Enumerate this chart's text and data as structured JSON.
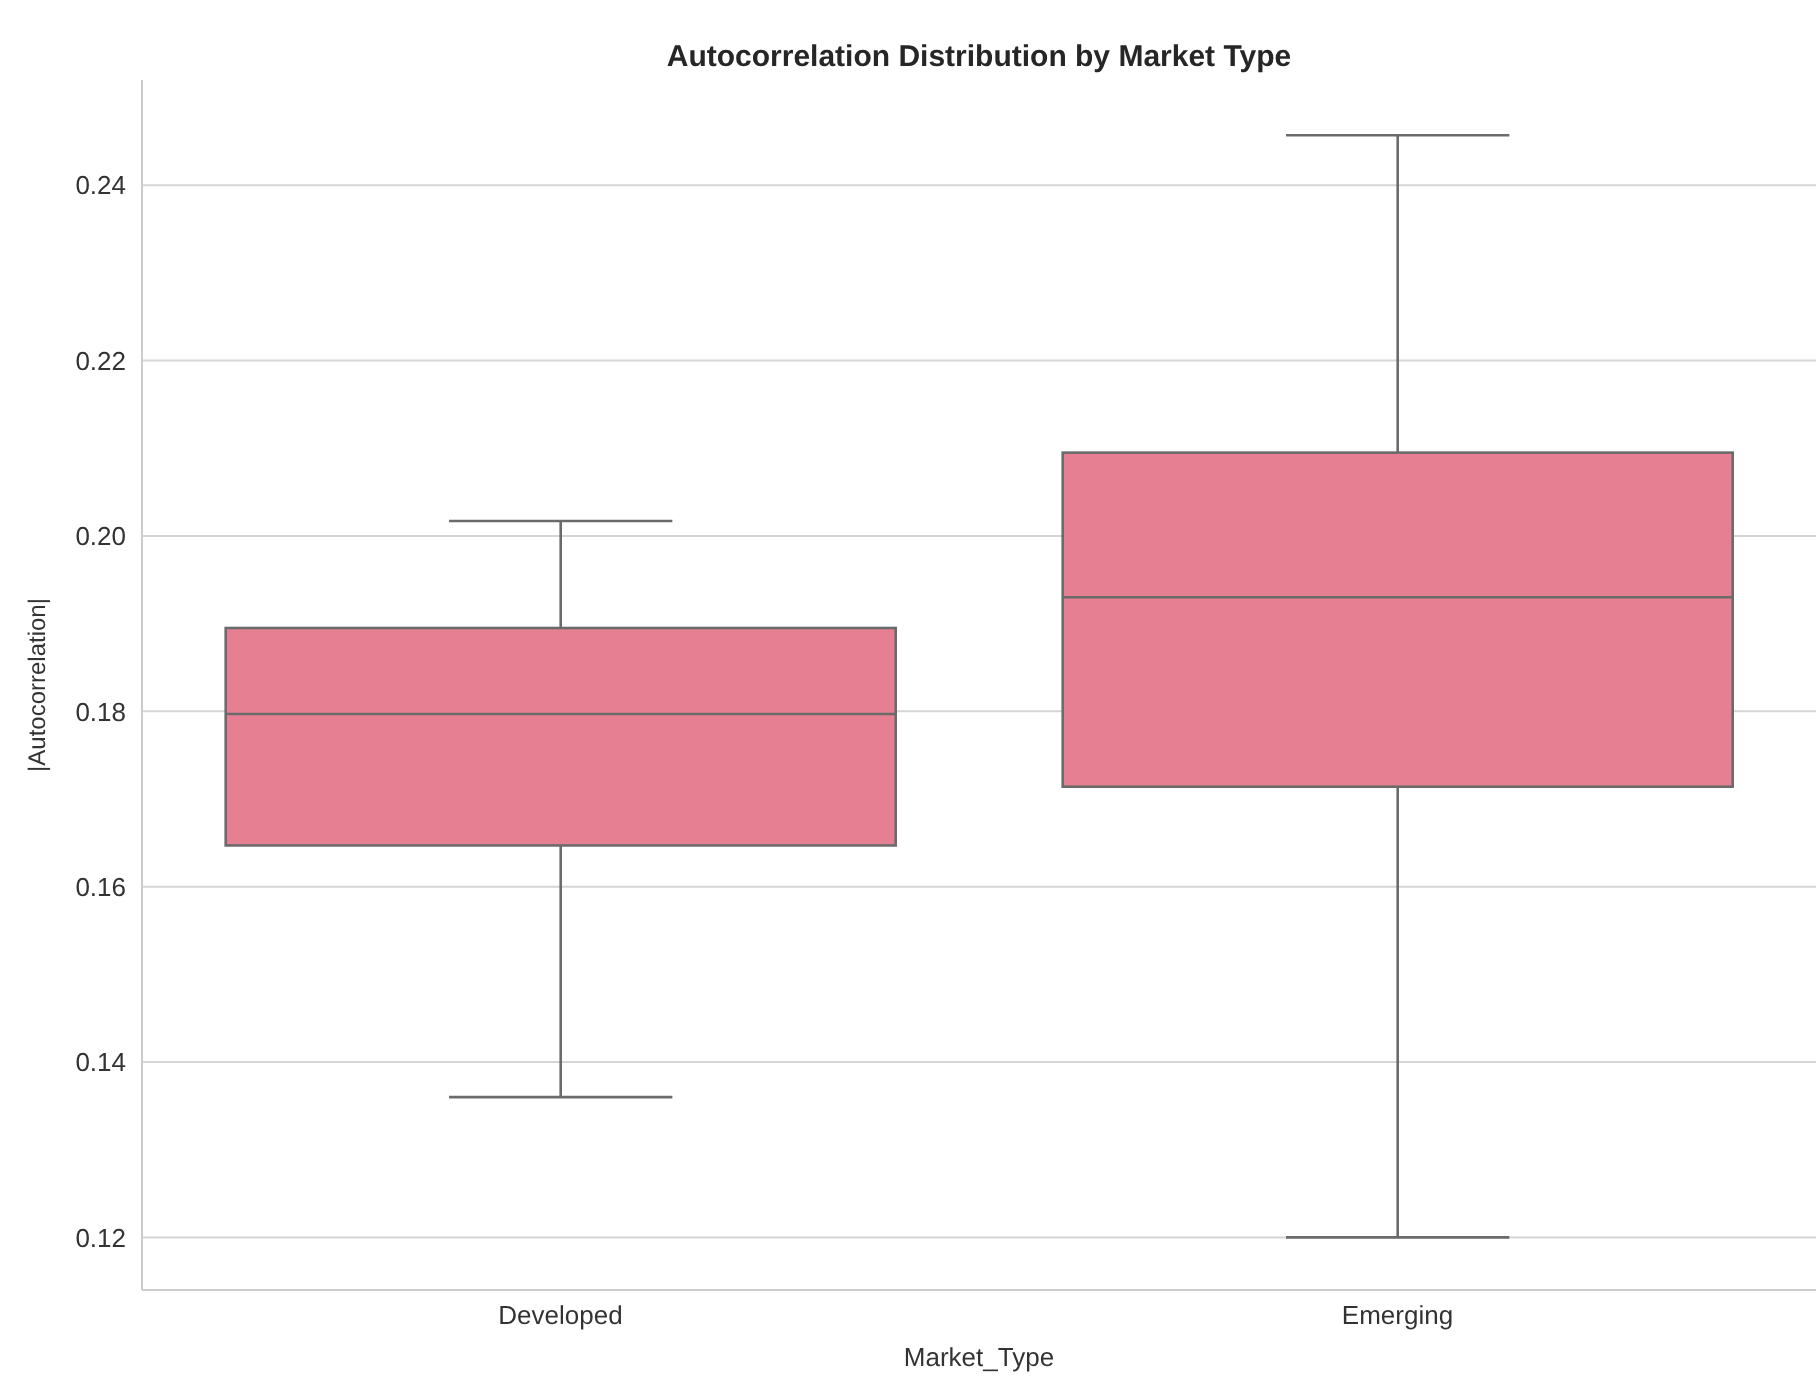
{
  "chart_data": {
    "type": "box",
    "title": "Autocorrelation Distribution by Market Type",
    "xlabel": "Market_Type",
    "ylabel": "|Autocorrelation|",
    "categories": [
      "Developed",
      "Emerging"
    ],
    "boxes": [
      {
        "low": 0.136,
        "q1": 0.1647,
        "median": 0.1797,
        "q3": 0.1895,
        "high": 0.2017
      },
      {
        "low": 0.12,
        "q1": 0.1714,
        "median": 0.193,
        "q3": 0.2095,
        "high": 0.2457
      }
    ],
    "colors": [
      "#e77f92",
      "#e77f92"
    ],
    "ylim": [
      0.114,
      0.252
    ],
    "yticks": [
      0.12,
      0.14,
      0.16,
      0.18,
      {
        "value": 0.2,
        "label": "0.20"
      },
      0.22,
      0.24
    ],
    "grid": "y"
  }
}
